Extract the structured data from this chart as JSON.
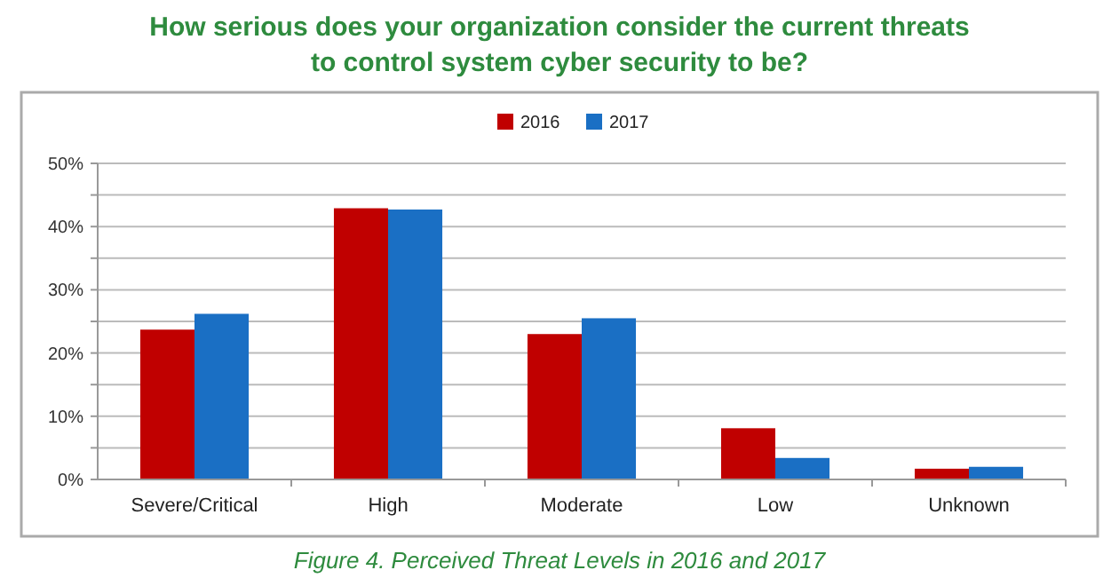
{
  "chart_data": {
    "type": "bar",
    "title": "How serious does your organization consider the current threats to control system cyber security to be?",
    "categories": [
      "Severe/Critical",
      "High",
      "Moderate",
      "Low",
      "Unknown"
    ],
    "series": [
      {
        "name": "2016",
        "color": "#c00000",
        "values": [
          23.7,
          42.9,
          23.0,
          8.1,
          1.7
        ]
      },
      {
        "name": "2017",
        "color": "#1a6fc4",
        "values": [
          26.2,
          42.7,
          25.5,
          3.4,
          2.0
        ]
      }
    ],
    "ylim": [
      0,
      50
    ],
    "yticks": [
      {
        "value": 0,
        "label": "0%"
      },
      {
        "value": 5,
        "label": null
      },
      {
        "value": 10,
        "label": "10%"
      },
      {
        "value": 15,
        "label": null
      },
      {
        "value": 20,
        "label": "20%"
      },
      {
        "value": 25,
        "label": null
      },
      {
        "value": 30,
        "label": "30%"
      },
      {
        "value": 35,
        "label": null
      },
      {
        "value": 40,
        "label": "40%"
      },
      {
        "value": 45,
        "label": null
      },
      {
        "value": 50,
        "label": "50%"
      }
    ],
    "grid": "y",
    "legend": "top",
    "annotations": [
      "Figure 4. Perceived Threat Levels in 2016 and 2017"
    ]
  }
}
